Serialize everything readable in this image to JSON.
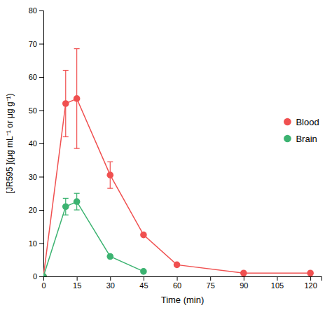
{
  "chart_data": {
    "type": "line",
    "xlabel": "Time (min)",
    "ylabel": "[JR595 ](μg mL⁻¹ or μg g⁻¹)",
    "xlim": [
      0,
      125
    ],
    "ylim": [
      0,
      80
    ],
    "xticks": [
      0,
      15,
      30,
      45,
      60,
      75,
      90,
      105,
      120
    ],
    "yticks": [
      0,
      10,
      20,
      30,
      40,
      50,
      60,
      70,
      80
    ],
    "grid": false,
    "legend": "right",
    "marker": "circle",
    "series": [
      {
        "name": "Blood",
        "color": "#f05050",
        "x": [
          0,
          10,
          15,
          30,
          45,
          60,
          90,
          120
        ],
        "values": [
          0,
          52,
          53.5,
          30.5,
          12.5,
          3.5,
          1.0,
          1.0
        ],
        "error_lower": [
          0,
          10,
          15,
          4,
          0,
          0,
          0,
          0
        ],
        "error_upper": [
          0,
          10,
          15,
          4,
          0,
          0,
          0,
          0
        ]
      },
      {
        "name": "Brain",
        "color": "#3cb371",
        "x": [
          0,
          10,
          15,
          30,
          45
        ],
        "values": [
          0,
          21,
          22.5,
          6,
          1.5
        ],
        "error_lower": [
          0,
          2.5,
          2.5,
          0,
          0
        ],
        "error_upper": [
          0,
          2.5,
          2.5,
          0,
          0
        ]
      }
    ]
  }
}
